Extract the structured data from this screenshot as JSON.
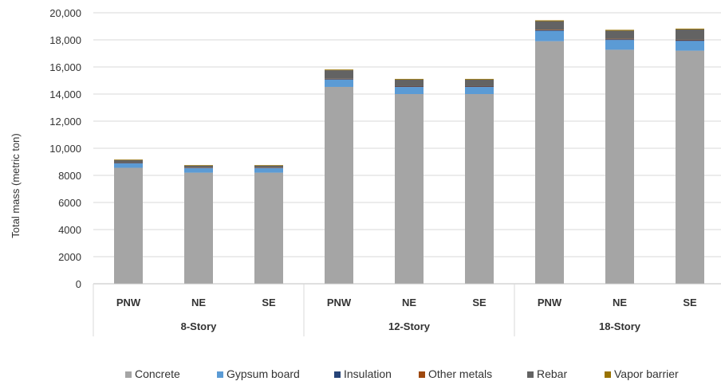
{
  "chart_data": {
    "type": "bar",
    "stacked": true,
    "title": "",
    "xlabel": "",
    "ylabel": "Total mass (metric ton)",
    "ylim": [
      0,
      20000
    ],
    "yticks": [
      {
        "value": 0,
        "label": "0"
      },
      {
        "value": 2000,
        "label": "2000"
      },
      {
        "value": 4000,
        "label": "4000"
      },
      {
        "value": 6000,
        "label": "6000"
      },
      {
        "value": 8000,
        "label": "8000"
      },
      {
        "value": 10000,
        "label": "10,000"
      },
      {
        "value": 12000,
        "label": "12,000"
      },
      {
        "value": 14000,
        "label": "14,000"
      },
      {
        "value": 16000,
        "label": "16,000"
      },
      {
        "value": 18000,
        "label": "18,000"
      },
      {
        "value": 20000,
        "label": "20,000"
      }
    ],
    "grid": true,
    "legend_position": "bottom",
    "groups": [
      {
        "label": "8-Story",
        "categories": [
          "PNW",
          "NE",
          "SE"
        ]
      },
      {
        "label": "12-Story",
        "categories": [
          "PNW",
          "NE",
          "SE"
        ]
      },
      {
        "label": "18-Story",
        "categories": [
          "PNW",
          "NE",
          "SE"
        ]
      }
    ],
    "categories": [
      "PNW",
      "NE",
      "SE",
      "PNW",
      "NE",
      "SE",
      "PNW",
      "NE",
      "SE"
    ],
    "series": [
      {
        "name": "Concrete",
        "color": "#a5a5a5",
        "values": [
          8560,
          8200,
          8200,
          14530,
          14000,
          14000,
          17900,
          17270,
          17200
        ]
      },
      {
        "name": "Gypsum board",
        "color": "#5b9bd5",
        "values": [
          320,
          320,
          320,
          530,
          520,
          520,
          760,
          720,
          720
        ]
      },
      {
        "name": "Insulation",
        "color": "#264478",
        "values": [
          30,
          30,
          30,
          40,
          40,
          40,
          50,
          50,
          50
        ]
      },
      {
        "name": "Other metals",
        "color": "#9e480e",
        "values": [
          20,
          20,
          20,
          30,
          30,
          30,
          40,
          40,
          40
        ]
      },
      {
        "name": "Rebar",
        "color": "#636363",
        "values": [
          200,
          150,
          150,
          630,
          480,
          480,
          630,
          600,
          760
        ]
      },
      {
        "name": "Vapor barrier",
        "color": "#997300",
        "values": [
          40,
          40,
          40,
          50,
          50,
          50,
          60,
          60,
          60
        ]
      }
    ]
  }
}
